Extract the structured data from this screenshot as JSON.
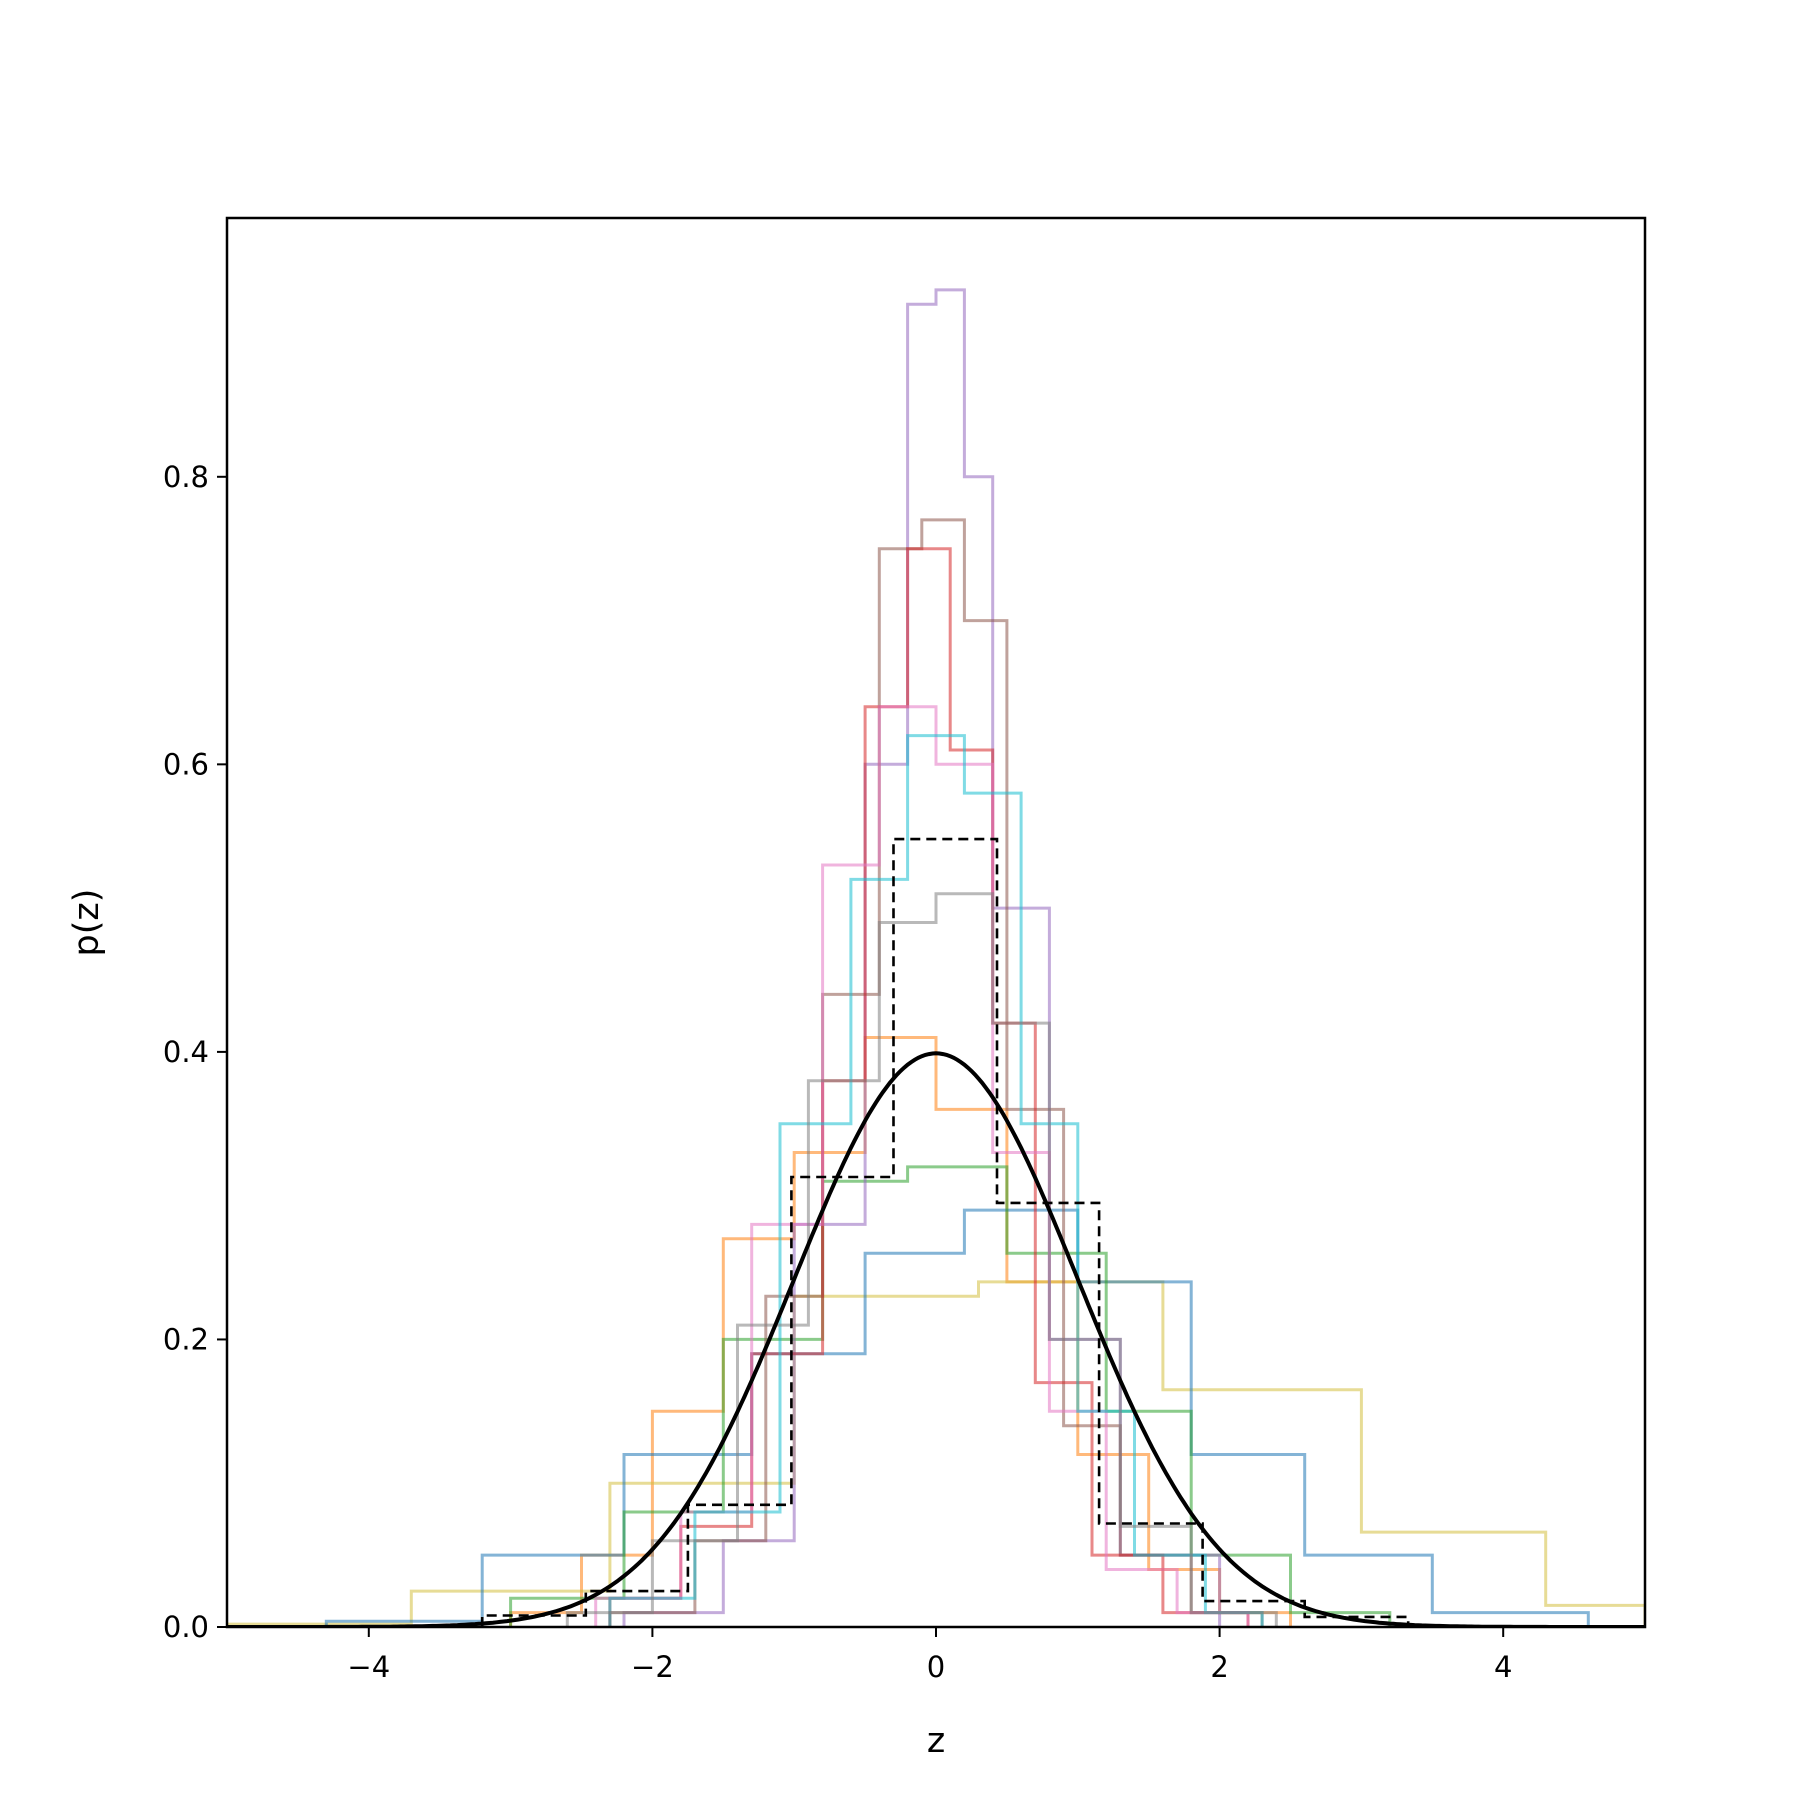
{
  "chart_data": {
    "type": "histogram",
    "xlabel": "z",
    "ylabel": "p(z)",
    "xlim": [
      -5,
      5
    ],
    "ylim": [
      0,
      0.98
    ],
    "grid": false,
    "legend": "none",
    "x_ticks": [
      -4,
      -2,
      0,
      2,
      4
    ],
    "x_tick_labels": [
      "−4",
      "−2",
      "0",
      "2",
      "4"
    ],
    "y_ticks": [
      0.0,
      0.2,
      0.4,
      0.6,
      0.8
    ],
    "y_tick_labels": [
      "0.0",
      "0.2",
      "0.4",
      "0.6",
      "0.8"
    ],
    "reference_histogram": {
      "style": "dashed",
      "color": "#000000",
      "edges": [
        -3.2,
        -2.47,
        -1.75,
        -1.02,
        -0.3,
        0.43,
        1.15,
        1.88,
        2.6,
        3.33
      ],
      "values": [
        0.008,
        0.025,
        0.085,
        0.313,
        0.548,
        0.295,
        0.072,
        0.018,
        0.007
      ]
    },
    "normal_curve": {
      "color": "#000000",
      "mean": 0,
      "std": 1,
      "peak": 0.399
    },
    "series": [
      {
        "color": "#ff7f0e",
        "edges": [
          -3.0,
          -2.5,
          -2.0,
          -1.5,
          -1.0,
          -0.5,
          0.0,
          0.5,
          1.0,
          1.5,
          2.0,
          2.5
        ],
        "values": [
          0.01,
          0.05,
          0.15,
          0.27,
          0.33,
          0.41,
          0.36,
          0.24,
          0.12,
          0.04,
          0.01
        ]
      },
      {
        "color": "#d4c03f",
        "edges": [
          -5.0,
          -3.7,
          -2.3,
          -1.0,
          0.3,
          1.6,
          3.0,
          4.3,
          5.0
        ],
        "values": [
          0.002,
          0.025,
          0.1,
          0.23,
          0.24,
          0.165,
          0.066,
          0.015
        ]
      },
      {
        "color": "#1f77b4",
        "edges": [
          -4.3,
          -3.2,
          -2.2,
          -1.3,
          -0.5,
          0.2,
          1.0,
          1.8,
          2.6,
          3.5,
          4.6
        ],
        "values": [
          0.004,
          0.05,
          0.12,
          0.19,
          0.26,
          0.29,
          0.24,
          0.12,
          0.05,
          0.01
        ]
      },
      {
        "color": "#2ca02c",
        "edges": [
          -3.0,
          -2.2,
          -1.5,
          -0.8,
          -0.2,
          0.5,
          1.2,
          1.8,
          2.5,
          3.2
        ],
        "values": [
          0.02,
          0.08,
          0.2,
          0.31,
          0.32,
          0.26,
          0.15,
          0.05,
          0.01
        ]
      },
      {
        "color": "#9467bd",
        "edges": [
          -2.2,
          -1.5,
          -1.0,
          -0.5,
          -0.2,
          0.0,
          0.2,
          0.4,
          0.8,
          1.3,
          2.0
        ],
        "values": [
          0.01,
          0.06,
          0.28,
          0.6,
          0.92,
          0.93,
          0.8,
          0.5,
          0.2,
          0.05
        ]
      },
      {
        "color": "#8c564b",
        "edges": [
          -2.3,
          -1.7,
          -1.2,
          -0.8,
          -0.4,
          -0.1,
          0.2,
          0.5,
          0.9,
          1.3,
          1.8,
          2.3
        ],
        "values": [
          0.01,
          0.06,
          0.23,
          0.44,
          0.75,
          0.77,
          0.7,
          0.36,
          0.14,
          0.05,
          0.01
        ]
      },
      {
        "color": "#d62728",
        "edges": [
          -2.3,
          -1.8,
          -1.3,
          -0.8,
          -0.5,
          -0.2,
          0.1,
          0.4,
          0.7,
          1.1,
          1.6,
          2.2
        ],
        "values": [
          0.02,
          0.07,
          0.19,
          0.38,
          0.64,
          0.75,
          0.61,
          0.42,
          0.17,
          0.05,
          0.01
        ]
      },
      {
        "color": "#e377c2",
        "edges": [
          -2.4,
          -1.8,
          -1.3,
          -0.8,
          -0.4,
          0.0,
          0.4,
          0.8,
          1.2,
          1.7,
          2.2
        ],
        "values": [
          0.02,
          0.08,
          0.28,
          0.53,
          0.64,
          0.6,
          0.33,
          0.15,
          0.04,
          0.01
        ]
      },
      {
        "color": "#17becf",
        "edges": [
          -2.3,
          -1.7,
          -1.1,
          -0.6,
          -0.2,
          0.2,
          0.6,
          1.0,
          1.4,
          1.9,
          2.3
        ],
        "values": [
          0.02,
          0.08,
          0.35,
          0.52,
          0.62,
          0.58,
          0.35,
          0.15,
          0.05,
          0.01
        ]
      },
      {
        "color": "#7f7f7f",
        "edges": [
          -2.6,
          -2.0,
          -1.4,
          -0.9,
          -0.4,
          0.0,
          0.4,
          0.8,
          1.3,
          1.8,
          2.4
        ],
        "values": [
          0.01,
          0.06,
          0.21,
          0.38,
          0.49,
          0.51,
          0.42,
          0.2,
          0.07,
          0.01
        ]
      }
    ]
  }
}
